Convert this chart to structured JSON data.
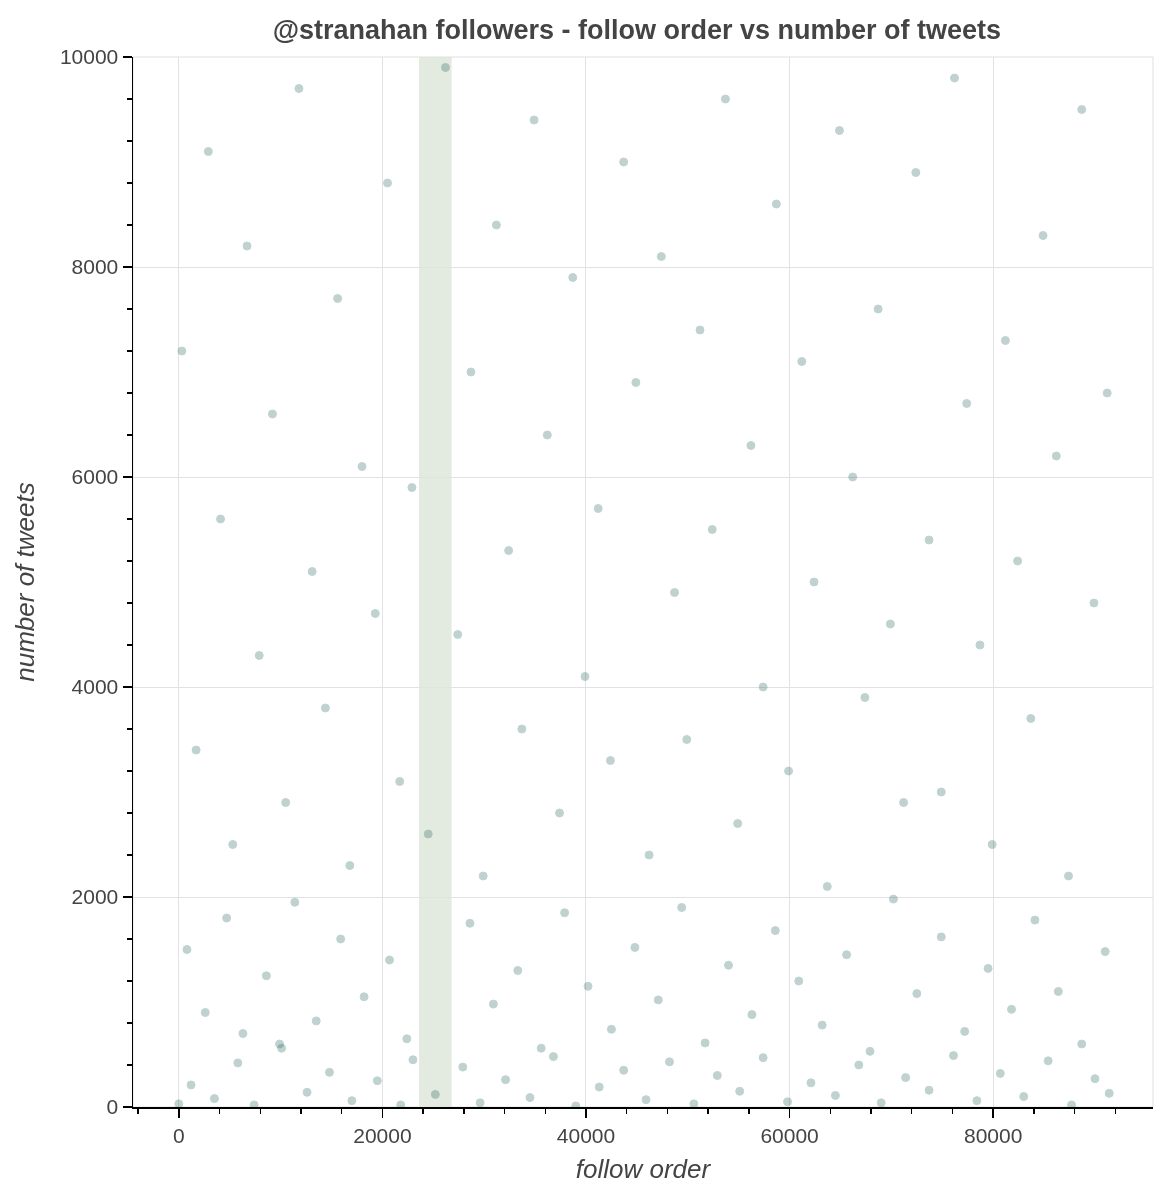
{
  "chart_data": {
    "type": "scatter",
    "title": "@stranahan followers - follow order vs number of tweets",
    "xlabel": "follow order",
    "ylabel": "number of tweets",
    "x": [
      0,
      1200,
      3500,
      5800,
      7400,
      9900,
      10100,
      12600,
      14800,
      17000,
      19500,
      21800,
      23000,
      25200,
      27900,
      29600,
      32100,
      34500,
      36800,
      39000,
      41300,
      43700,
      45900,
      48200,
      50600,
      52900,
      55100,
      57400,
      59800,
      62100,
      64500,
      66800,
      69000,
      71400,
      73700,
      76100,
      78400,
      80700,
      83000,
      85400,
      87700,
      90000,
      91400,
      800,
      2600,
      4700,
      6300,
      8600,
      11400,
      13500,
      15900,
      18200,
      20700,
      22400,
      28600,
      30900,
      33300,
      35600,
      37900,
      40200,
      42500,
      44800,
      47100,
      49400,
      51700,
      54000,
      56300,
      58600,
      60900,
      63200,
      65600,
      67900,
      70200,
      72500,
      74900,
      77200,
      79500,
      81800,
      84100,
      86400,
      88700,
      91000,
      300,
      1700,
      2900,
      4100,
      5300,
      6700,
      7900,
      9200,
      10500,
      11800,
      13100,
      14400,
      15600,
      16800,
      18000,
      19300,
      20500,
      21700,
      22900,
      24500,
      26200,
      27400,
      28700,
      29900,
      31200,
      32400,
      33700,
      34900,
      36200,
      37400,
      38700,
      39900,
      41200,
      42400,
      43700,
      44900,
      46200,
      47400,
      48700,
      49900,
      51200,
      52400,
      53700,
      54900,
      56200,
      57400,
      58700,
      59900,
      61200,
      62400,
      63700,
      64900,
      66200,
      67400,
      68700,
      69900,
      71200,
      72400,
      73700,
      74900,
      76200,
      77400,
      78700,
      79900,
      81200,
      82400,
      83700,
      84900,
      86200,
      87400,
      88700,
      89900,
      91200
    ],
    "values": [
      30,
      210,
      80,
      420,
      20,
      600,
      560,
      140,
      330,
      60,
      250,
      20,
      450,
      120,
      380,
      40,
      260,
      90,
      480,
      10,
      190,
      350,
      70,
      430,
      30,
      300,
      150,
      470,
      50,
      230,
      110,
      400,
      40,
      280,
      160,
      490,
      60,
      320,
      100,
      440,
      20,
      270,
      130,
      1500,
      900,
      1800,
      700,
      1250,
      1950,
      820,
      1600,
      1050,
      1400,
      650,
      1750,
      980,
      1300,
      560,
      1850,
      1150,
      740,
      1520,
      1020,
      1900,
      610,
      1350,
      880,
      1680,
      1200,
      780,
      1450,
      530,
      1980,
      1080,
      1620,
      720,
      1320,
      930,
      1780,
      1100,
      600,
      1480,
      7200,
      3400,
      9100,
      5600,
      2500,
      8200,
      4300,
      6600,
      2900,
      9700,
      5100,
      3800,
      7700,
      2300,
      6100,
      4700,
      8800,
      3100,
      5900,
      2600,
      9900,
      4500,
      7000,
      2200,
      8400,
      5300,
      3600,
      9400,
      6400,
      2800,
      7900,
      4100,
      5700,
      3300,
      9000,
      6900,
      2400,
      8100,
      4900,
      3500,
      7400,
      5500,
      9600,
      2700,
      6300,
      4000,
      8600,
      3200,
      7100,
      5000,
      2100,
      9300,
      6000,
      3900,
      7600,
      4600,
      2900,
      8900,
      5400,
      3000,
      9800,
      6700,
      4400,
      2500,
      7300,
      5200,
      3700,
      8300,
      6200,
      2200,
      9500,
      4800,
      6800
    ],
    "color": "#1d5f5b",
    "marker": "circle",
    "grid": true,
    "xlim": [
      -4500,
      95700
    ],
    "ylim": [
      0,
      10000
    ],
    "xticks": [
      {
        "value": -4000,
        "label": null
      },
      0,
      {
        "value": 4000,
        "label": null
      },
      {
        "value": 8000,
        "label": null
      },
      {
        "value": 12000,
        "label": null
      },
      {
        "value": 16000,
        "label": null
      },
      20000,
      {
        "value": 24000,
        "label": null
      },
      {
        "value": 28000,
        "label": null
      },
      {
        "value": 32000,
        "label": null
      },
      {
        "value": 36000,
        "label": null
      },
      40000,
      {
        "value": 44000,
        "label": null
      },
      {
        "value": 48000,
        "label": null
      },
      {
        "value": 52000,
        "label": null
      },
      {
        "value": 56000,
        "label": null
      },
      60000,
      {
        "value": 64000,
        "label": null
      },
      {
        "value": 68000,
        "label": null
      },
      {
        "value": 72000,
        "label": null
      },
      {
        "value": 76000,
        "label": null
      },
      80000,
      {
        "value": 84000,
        "label": null
      },
      {
        "value": 88000,
        "label": null
      },
      {
        "value": 92000,
        "label": null
      }
    ],
    "yticks": [
      0,
      {
        "value": 400,
        "label": null
      },
      {
        "value": 800,
        "label": null
      },
      {
        "value": 1200,
        "label": null
      },
      {
        "value": 1600,
        "label": null
      },
      2000,
      {
        "value": 2400,
        "label": null
      },
      {
        "value": 2800,
        "label": null
      },
      {
        "value": 3200,
        "label": null
      },
      {
        "value": 3600,
        "label": null
      },
      4000,
      {
        "value": 4400,
        "label": null
      },
      {
        "value": 4800,
        "label": null
      },
      {
        "value": 5200,
        "label": null
      },
      {
        "value": 5600,
        "label": null
      },
      6000,
      {
        "value": 6400,
        "label": null
      },
      {
        "value": 6800,
        "label": null
      },
      {
        "value": 7200,
        "label": null
      },
      {
        "value": 7600,
        "label": null
      },
      8000,
      {
        "value": 8400,
        "label": null
      },
      {
        "value": 8800,
        "label": null
      },
      {
        "value": 9200,
        "label": null
      },
      {
        "value": 9600,
        "label": null
      },
      10000
    ],
    "bands": [
      {
        "axis": "x",
        "from": 23600,
        "to": 26800,
        "color": "#e3eadf"
      }
    ]
  }
}
